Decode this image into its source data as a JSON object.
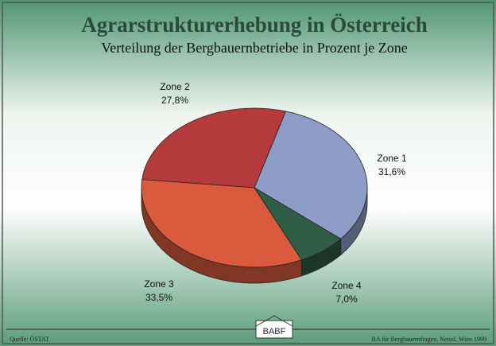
{
  "chart_data": {
    "type": "pie",
    "title": "Agrarstrukturerhebung in Österreich",
    "subtitle": "Verteilung der Bergbauernbetriebe in Prozent je Zone",
    "categories": [
      "Zone 1",
      "Zone 2",
      "Zone 3",
      "Zone 4"
    ],
    "values": [
      31.6,
      27.8,
      33.5,
      7.0
    ],
    "value_labels": [
      "31,6%",
      "27,8%",
      "33,5%",
      "7,0%"
    ],
    "colors": [
      "#8d9dc6",
      "#b43a3c",
      "#d95a3c",
      "#2f5d45"
    ],
    "source": "Quelle: ÖSTAT",
    "credit": "BA für Bergbauernfragen, Neissl, Wien 1999",
    "logo": "BABF"
  }
}
